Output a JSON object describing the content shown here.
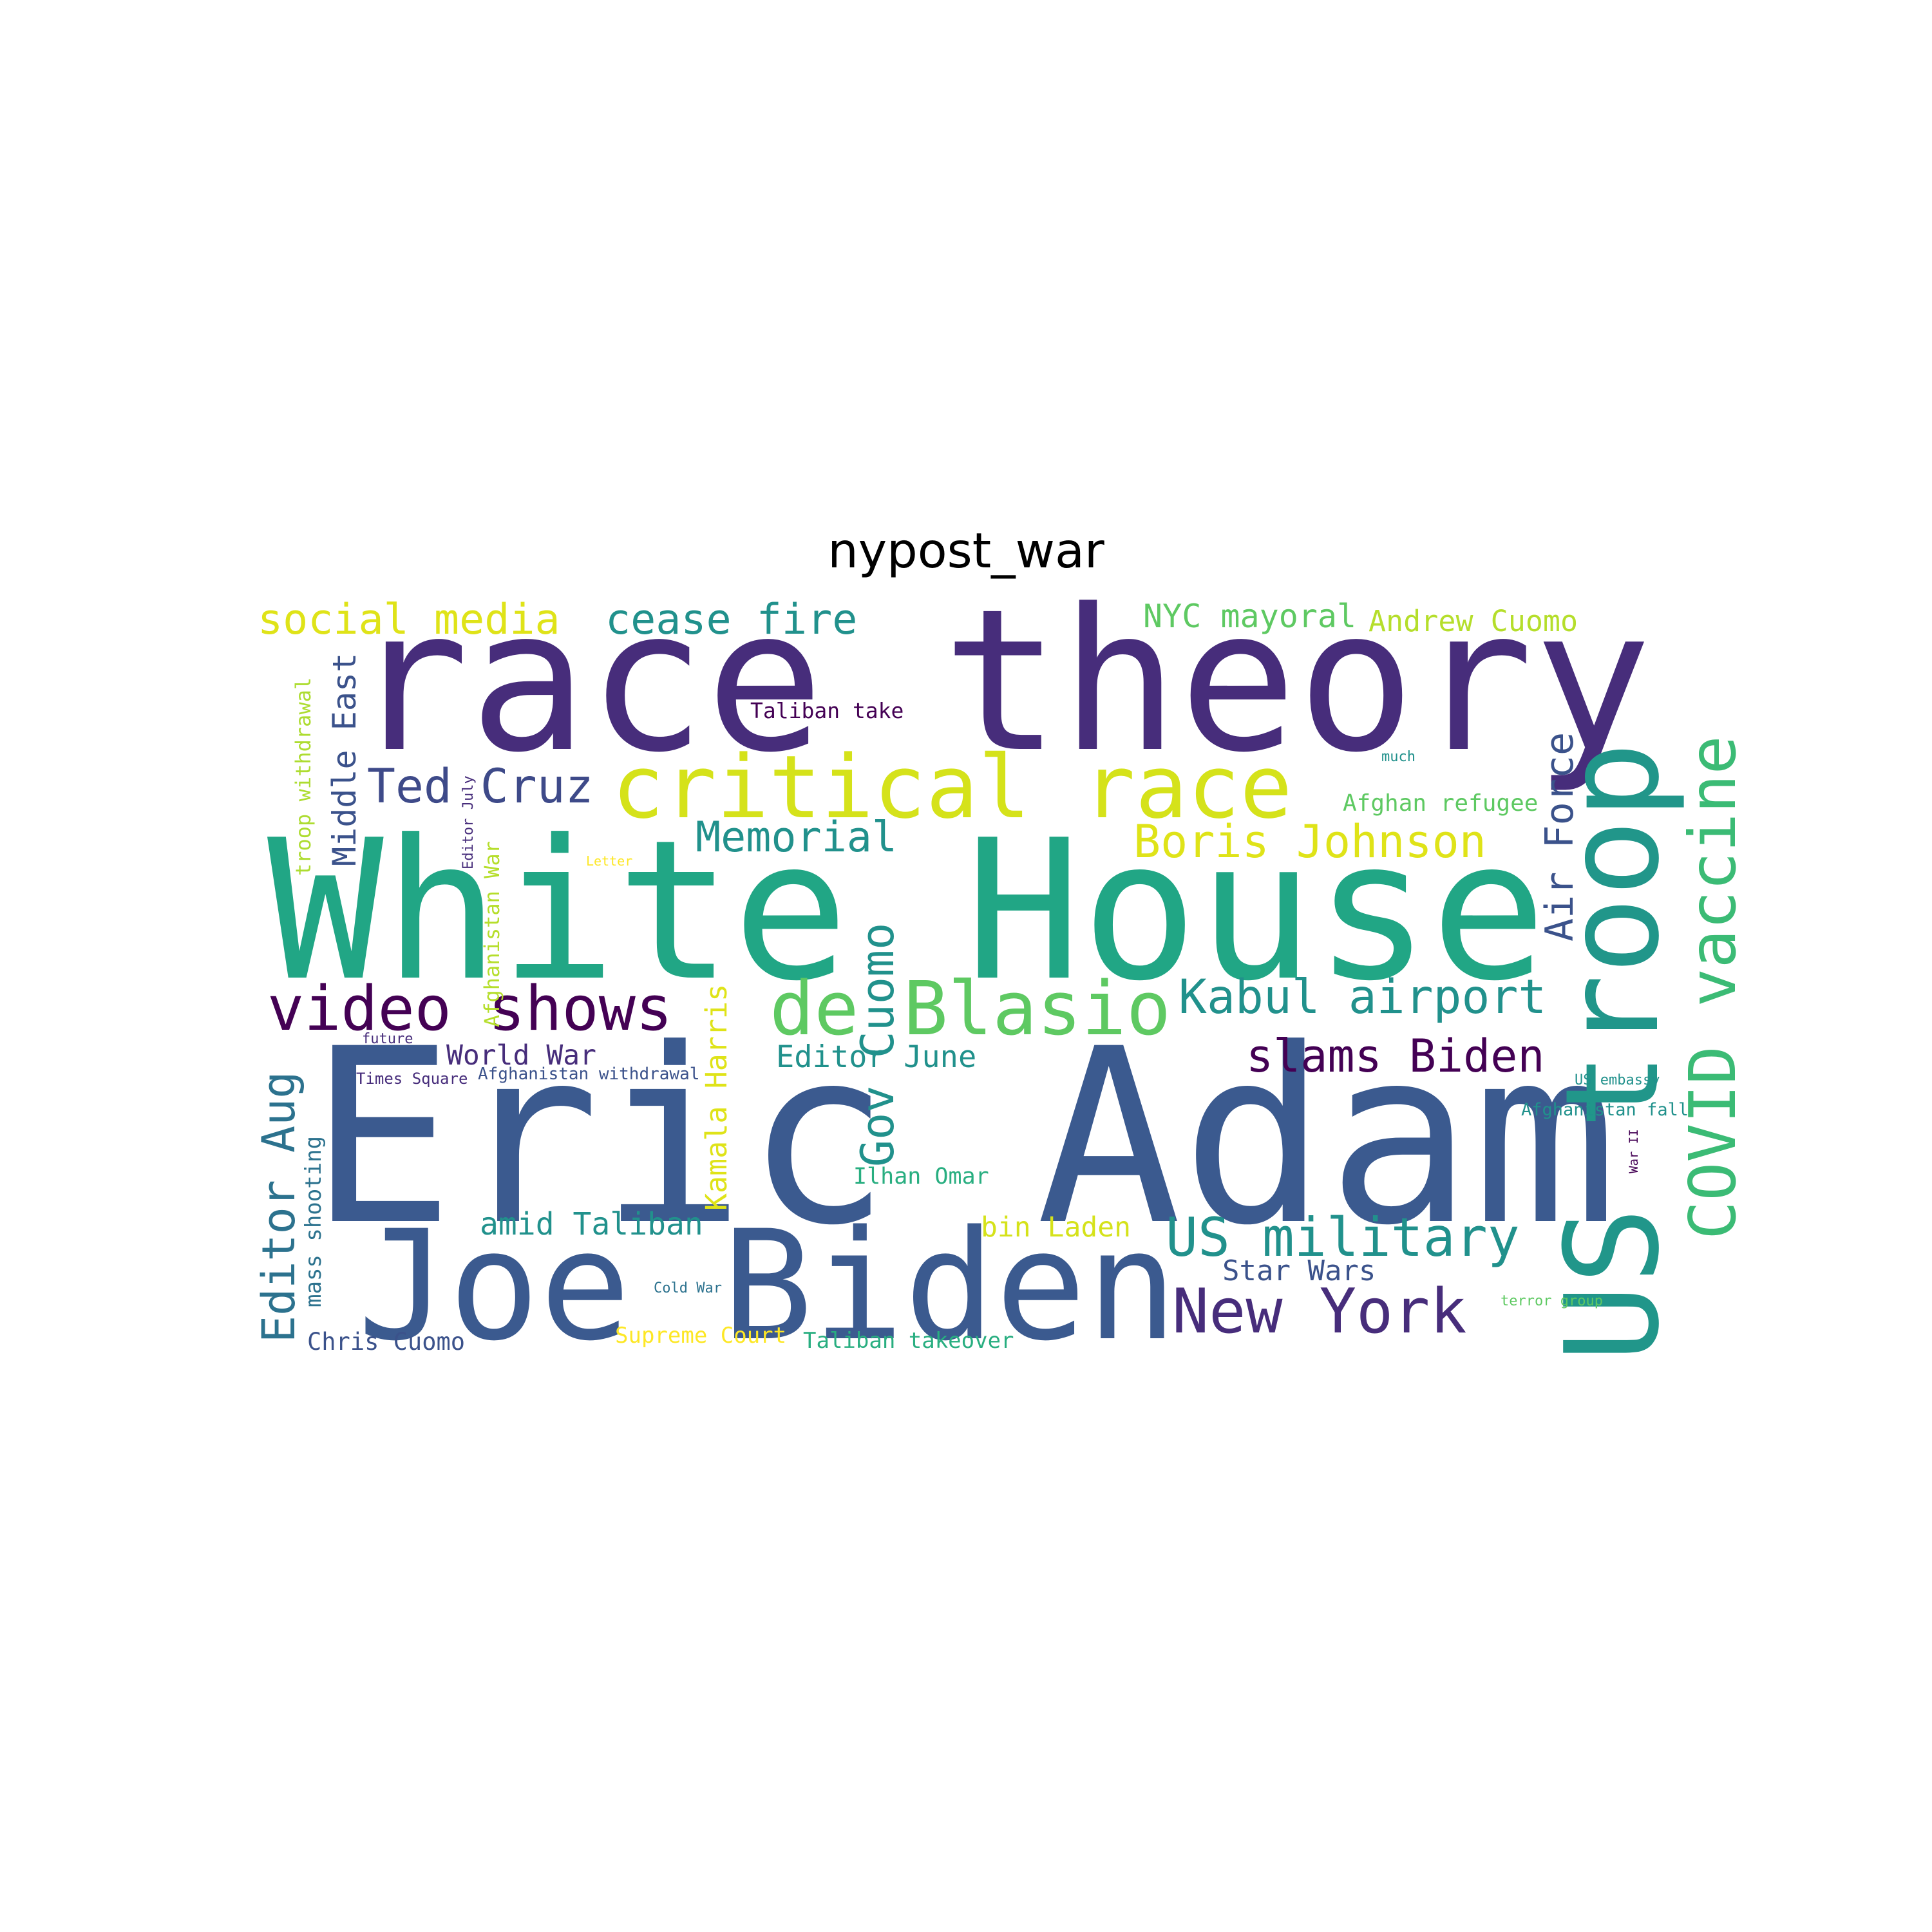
{
  "title": "nypost_war",
  "palette": {
    "dark_purple": "#440154",
    "indigo": "#472d7b",
    "blue_violet": "#3b528b",
    "steel_blue": "#2c728e",
    "teal": "#21918c",
    "green_teal": "#28ae80",
    "green": "#5ec962",
    "lime": "#addc30",
    "yellow": "#d8e219",
    "bright_yellow": "#fde725"
  },
  "words": [
    {
      "text": "race theory",
      "color": "#472d7b"
    },
    {
      "text": "White House",
      "color": "#21a685"
    },
    {
      "text": "Eric Adam",
      "color": "#3b5a8f"
    },
    {
      "text": "Joe Biden",
      "color": "#3b5a8f"
    },
    {
      "text": "US troop",
      "color": "#21968a"
    },
    {
      "text": "critical race",
      "color": "#d5e21a"
    },
    {
      "text": "COVID vaccine",
      "color": "#3bbb75"
    },
    {
      "text": "de Blasio",
      "color": "#5ec962"
    },
    {
      "text": "video shows",
      "color": "#440154"
    },
    {
      "text": "social media",
      "color": "#dfe318"
    },
    {
      "text": "cease fire",
      "color": "#21918c"
    },
    {
      "text": "NYC mayoral",
      "color": "#5ec962"
    },
    {
      "text": "Andrew Cuomo",
      "color": "#b5de2b"
    },
    {
      "text": "Ted Cruz",
      "color": "#3e4a89"
    },
    {
      "text": "Boris Johnson",
      "color": "#dfe318"
    },
    {
      "text": "Memorial",
      "color": "#21918c"
    },
    {
      "text": "Kabul airport",
      "color": "#21918c"
    },
    {
      "text": "slams Biden",
      "color": "#440154"
    },
    {
      "text": "US military",
      "color": "#21918c"
    },
    {
      "text": "New York",
      "color": "#472d7b"
    },
    {
      "text": "Gov Cuomo",
      "color": "#21918c"
    },
    {
      "text": "Editor Aug",
      "color": "#2c728e"
    },
    {
      "text": "Kamala Harris",
      "color": "#dfe318"
    },
    {
      "text": "Air Force",
      "color": "#3b528b"
    },
    {
      "text": "Middle East",
      "color": "#3b528b"
    },
    {
      "text": "troop withdrawal",
      "color": "#addc30"
    },
    {
      "text": "Afghanistan War",
      "color": "#b5de2b"
    },
    {
      "text": "Editor July",
      "color": "#472d7b"
    },
    {
      "text": "Taliban take",
      "color": "#440154"
    },
    {
      "text": "much",
      "color": "#21918c"
    },
    {
      "text": "Afghan refugee",
      "color": "#5ec962"
    },
    {
      "text": "Letter",
      "color": "#fde725"
    },
    {
      "text": "World War",
      "color": "#472d7b"
    },
    {
      "text": "future",
      "color": "#472d7b"
    },
    {
      "text": "Afghanistan withdrawal",
      "color": "#3b528b"
    },
    {
      "text": "Times Square",
      "color": "#472d7b"
    },
    {
      "text": "Editor June",
      "color": "#21918c"
    },
    {
      "text": "Ilhan Omar",
      "color": "#28ae80"
    },
    {
      "text": "mass shooting",
      "color": "#2c728e"
    },
    {
      "text": "amid Taliban",
      "color": "#21918c"
    },
    {
      "text": "bin Laden",
      "color": "#d5e21a"
    },
    {
      "text": "Star Wars",
      "color": "#3b528b"
    },
    {
      "text": "Chris Cuomo",
      "color": "#3b528b"
    },
    {
      "text": "Cold War",
      "color": "#2c728e"
    },
    {
      "text": "Supreme Court",
      "color": "#fde725"
    },
    {
      "text": "Taliban takeover",
      "color": "#28ae80"
    },
    {
      "text": "US embassy",
      "color": "#21918c"
    },
    {
      "text": "Afghanistan fall",
      "color": "#21918c"
    },
    {
      "text": "War II",
      "color": "#440154"
    },
    {
      "text": "terror group",
      "color": "#5ec962"
    }
  ]
}
